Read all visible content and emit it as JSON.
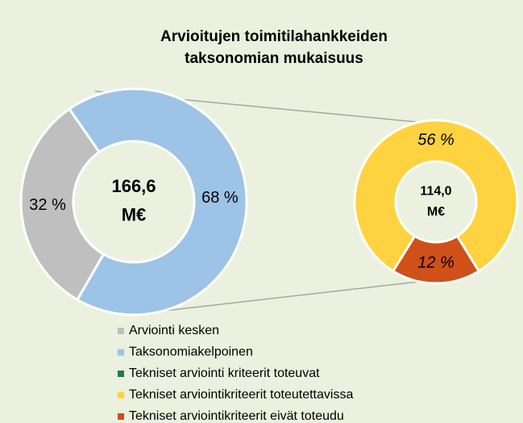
{
  "chart_data": {
    "type": "pie",
    "title": [
      "Arvioitujen toimitilahankkeiden",
      "taksonomian mukaisuus"
    ],
    "legend": [
      {
        "name": "Arviointi kesken",
        "color": "#bfbfbf"
      },
      {
        "name": "Taksonomiakelpoinen",
        "color": "#9dc3e6"
      },
      {
        "name": "Tekniset arviointi kriteerit toteuvat",
        "color": "#1e7b5c"
      },
      {
        "name": "Tekniset arviointikriteerit toteutettavissa",
        "color": "#ffd23f"
      },
      {
        "name": "Tekniset arviointikriteerit eivät toteudu",
        "color": "#d0501a"
      }
    ],
    "pies": [
      {
        "center_label": [
          "166,6",
          "M€"
        ],
        "values": [
          32,
          68
        ],
        "value_labels": [
          "32 %",
          "68 %"
        ],
        "colors": [
          "#bfbfbf",
          "#9dc3e6"
        ]
      },
      {
        "center_label": [
          "114,0",
          "M€"
        ],
        "values": [
          56,
          12
        ],
        "value_labels": [
          "56 %",
          "12 %"
        ],
        "colors": [
          "#ffd23f",
          "#d0501a"
        ]
      }
    ]
  }
}
